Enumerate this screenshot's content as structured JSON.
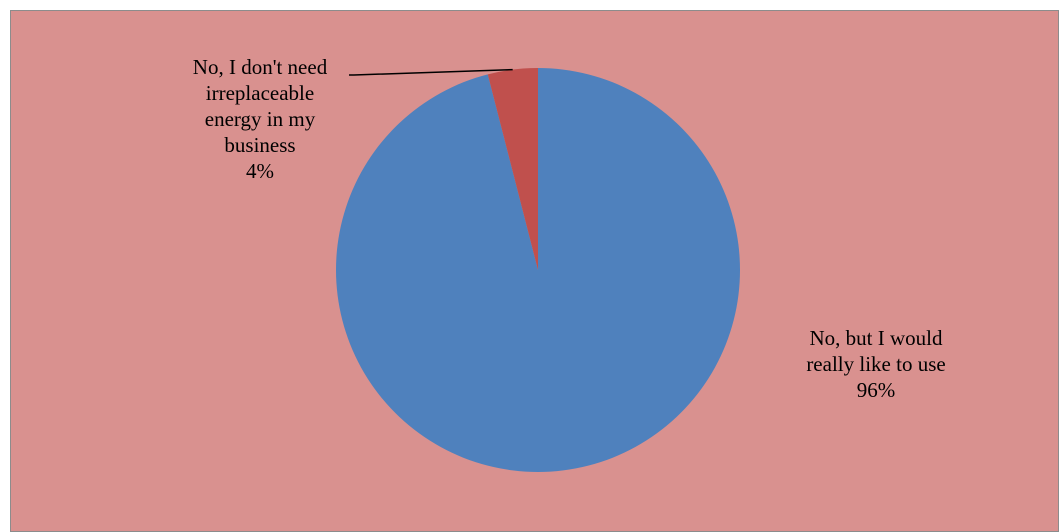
{
  "chart_data": {
    "type": "pie",
    "title": "",
    "background_color": "#d9918f",
    "slices": [
      {
        "label_lines": [
          "No, but I would",
          "really like to use"
        ],
        "label": "No, but I would really like to use",
        "value": 96,
        "percent_label": "96%",
        "color": "#4f81bd"
      },
      {
        "label_lines": [
          "No, I don't need",
          "irreplaceable",
          "energy in my",
          "business"
        ],
        "label": "No, I don't need irreplaceable energy in my business",
        "value": 4,
        "percent_label": "4%",
        "color": "#c0504d"
      }
    ],
    "legend": "none",
    "data_labels": "outside with leader line"
  }
}
